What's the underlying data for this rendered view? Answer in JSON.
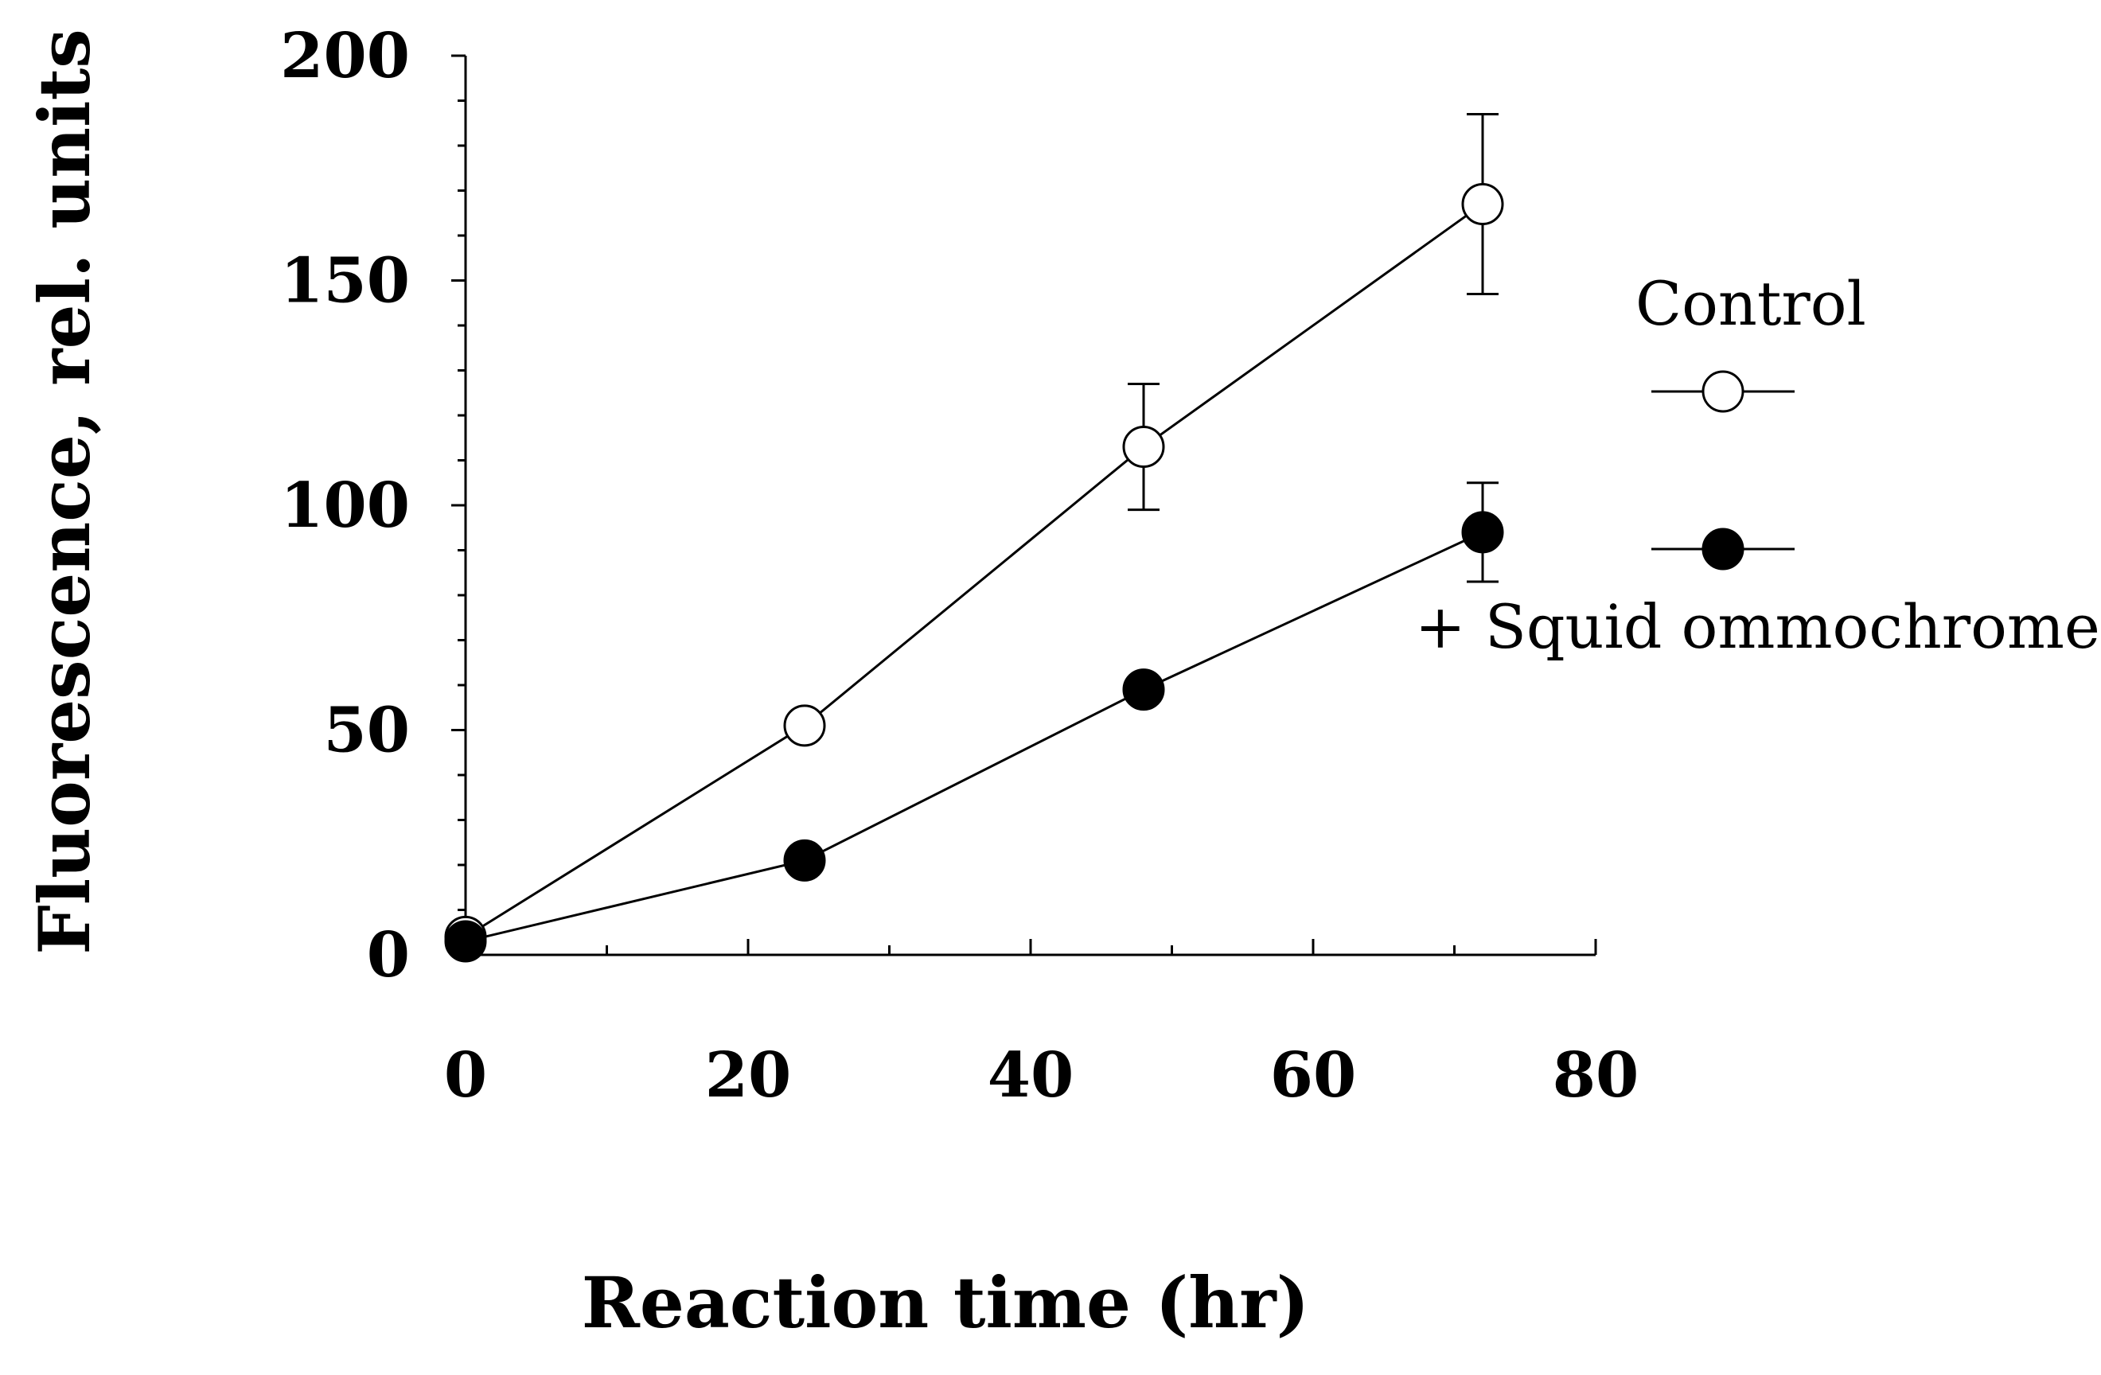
{
  "chart_data": {
    "type": "line",
    "title": "",
    "xlabel": "Reaction time (hr)",
    "ylabel": "Fluorescence, rel. units",
    "xlim": [
      0,
      80
    ],
    "ylim": [
      0,
      200
    ],
    "xticks": [
      0,
      20,
      40,
      60,
      80
    ],
    "yticks": [
      0,
      50,
      100,
      150,
      200
    ],
    "x_tick_labels": [
      "0",
      "20",
      "40",
      "60",
      "80"
    ],
    "y_tick_labels": [
      "0",
      "50",
      "100",
      "150",
      "200"
    ],
    "grid": false,
    "legend_position": "right",
    "series": [
      {
        "name": "Control",
        "marker": "open-circle",
        "x": [
          0,
          24,
          48,
          72
        ],
        "y": [
          4,
          51,
          113,
          167
        ],
        "error": [
          0,
          0,
          14,
          20
        ]
      },
      {
        "name": "+ Squid ommochromes",
        "marker": "filled-circle",
        "x": [
          0,
          24,
          48,
          72
        ],
        "y": [
          3,
          21,
          59,
          94
        ],
        "error": [
          0,
          0,
          0,
          11
        ]
      }
    ]
  }
}
